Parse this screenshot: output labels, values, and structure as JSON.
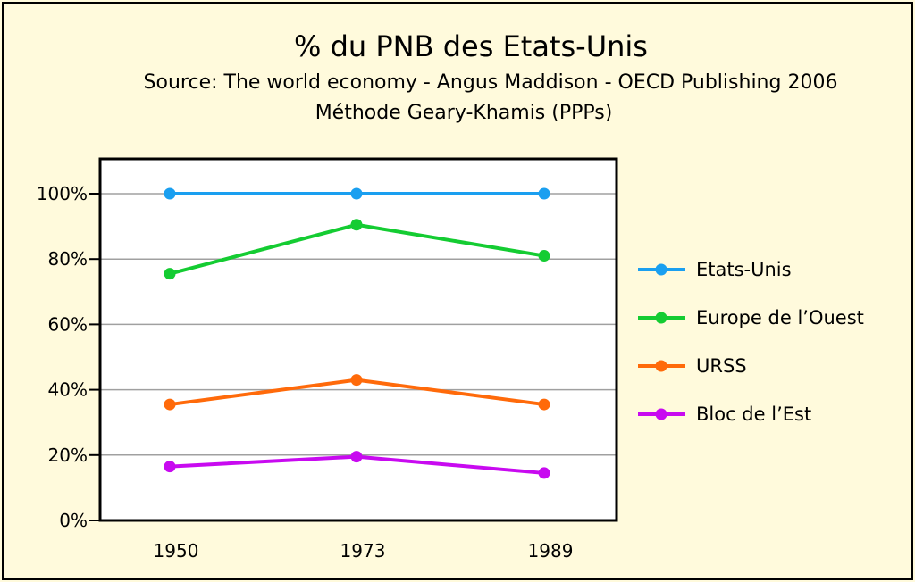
{
  "header": {
    "title": "% du PNB des Etats-Unis",
    "subtitle": "Source: The world economy - Angus Maddison - OECD Publishing 2006",
    "subtitle2": "Méthode Geary-Khamis (PPPs)"
  },
  "chart_data": {
    "type": "line",
    "title": "% du PNB des Etats-Unis",
    "subtitle": "Source: The world economy - Angus Maddison - OECD Publishing 2006 / Méthode Geary-Khamis (PPPs)",
    "categories": [
      "1950",
      "1973",
      "1989"
    ],
    "ylim": [
      0,
      100
    ],
    "yticks": [
      "0%",
      "20%",
      "40%",
      "60%",
      "80%",
      "100%"
    ],
    "grid": true,
    "legend_position": "right",
    "series": [
      {
        "name": "Etats-Unis",
        "color": "#1a9ff0",
        "values": [
          100,
          100,
          100
        ]
      },
      {
        "name": "Europe de l’Ouest",
        "color": "#14cc32",
        "values": [
          75.5,
          90.5,
          81
        ]
      },
      {
        "name": "URSS",
        "color": "#ff6a0a",
        "values": [
          35.5,
          43,
          35.5
        ]
      },
      {
        "name": "Bloc de l’Est",
        "color": "#c80af0",
        "values": [
          16.5,
          19.5,
          14.5
        ]
      }
    ]
  }
}
